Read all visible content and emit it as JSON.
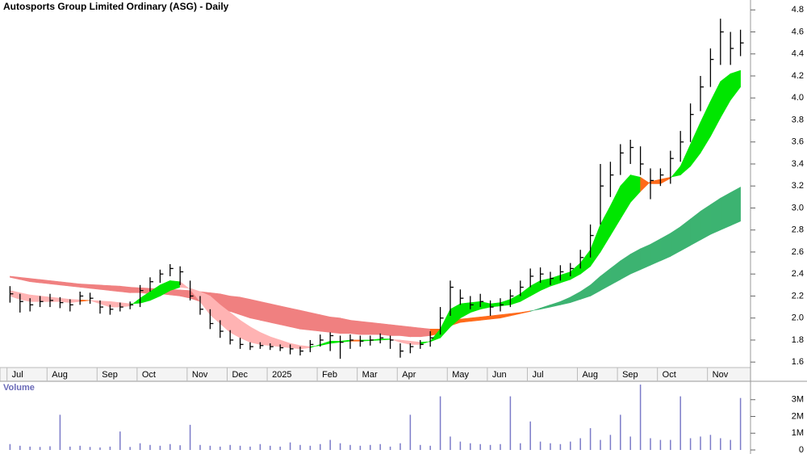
{
  "chart_data": {
    "type": "ohlc",
    "title": "Autosports Group Limited Ordinary (ASG) - Daily",
    "xlim": [
      -1,
      74
    ],
    "xticks": [
      {
        "value": -0.3,
        "label": "Jul"
      },
      {
        "value": 3.7,
        "label": "Aug"
      },
      {
        "value": 8.7,
        "label": "Sep"
      },
      {
        "value": 12.7,
        "label": "Oct"
      },
      {
        "value": 17.7,
        "label": "Nov"
      },
      {
        "value": 21.7,
        "label": "Dec"
      },
      {
        "value": 25.7,
        "label": "2025"
      },
      {
        "value": 30.7,
        "label": "Feb"
      },
      {
        "value": 34.7,
        "label": "Mar"
      },
      {
        "value": 38.7,
        "label": "Apr"
      },
      {
        "value": 43.7,
        "label": "May"
      },
      {
        "value": 47.7,
        "label": "Jun"
      },
      {
        "value": 51.7,
        "label": "Jul"
      },
      {
        "value": 56.7,
        "label": "Aug"
      },
      {
        "value": 60.7,
        "label": "Sep"
      },
      {
        "value": 64.7,
        "label": "Oct"
      },
      {
        "value": 69.7,
        "label": "Nov"
      }
    ],
    "ylim": [
      1.55,
      4.89
    ],
    "yticks": [
      1.6,
      1.8,
      {
        "value": 2,
        "label": "2.0"
      },
      2.2,
      2.4,
      2.6,
      2.8,
      {
        "value": 3,
        "label": "3.0"
      },
      3.2,
      3.4,
      3.6,
      3.8,
      {
        "value": 4,
        "label": "4.0"
      },
      4.2,
      4.4,
      4.6,
      4.8
    ],
    "color": "#000000",
    "values": [
      2.22,
      2.15,
      2.12,
      2.15,
      2.16,
      2.14,
      2.12,
      2.2,
      2.18,
      2.1,
      2.08,
      2.1,
      2.12,
      2.25,
      2.33,
      2.4,
      2.45,
      2.42,
      2.2,
      2.08,
      1.95,
      1.88,
      1.8,
      1.76,
      1.74,
      1.75,
      1.74,
      1.73,
      1.72,
      1.7,
      1.76,
      1.8,
      1.84,
      1.78,
      1.8,
      1.79,
      1.8,
      1.82,
      1.8,
      1.7,
      1.74,
      1.76,
      1.82,
      2.0,
      2.28,
      2.18,
      2.12,
      2.15,
      2.1,
      2.12,
      2.2,
      2.28,
      2.38,
      2.4,
      2.36,
      2.42,
      2.45,
      2.55,
      2.75,
      3.2,
      3.3,
      3.5,
      3.55,
      3.4,
      3.25,
      3.3,
      3.45,
      3.6,
      3.85,
      4.1,
      4.35,
      4.6,
      4.45,
      4.5
    ],
    "high": [
      2.29,
      2.22,
      2.18,
      2.2,
      2.22,
      2.19,
      2.17,
      2.24,
      2.23,
      2.16,
      2.12,
      2.14,
      2.15,
      2.3,
      2.37,
      2.44,
      2.49,
      2.47,
      2.34,
      2.2,
      2.08,
      1.98,
      1.89,
      1.82,
      1.78,
      1.78,
      1.77,
      1.76,
      1.76,
      1.74,
      1.8,
      1.85,
      1.87,
      1.84,
      1.85,
      1.84,
      1.84,
      1.86,
      1.84,
      1.77,
      1.77,
      1.8,
      1.88,
      2.1,
      2.34,
      2.26,
      2.2,
      2.22,
      2.16,
      2.18,
      2.26,
      2.34,
      2.45,
      2.46,
      2.42,
      2.48,
      2.5,
      2.62,
      2.85,
      3.4,
      3.42,
      3.58,
      3.62,
      3.56,
      3.36,
      3.36,
      3.52,
      3.7,
      3.95,
      4.2,
      4.45,
      4.72,
      4.6,
      4.62
    ],
    "low": [
      2.14,
      2.05,
      2.06,
      2.1,
      2.1,
      2.09,
      2.06,
      2.12,
      2.13,
      2.04,
      2.03,
      2.06,
      2.08,
      2.1,
      2.24,
      2.32,
      2.38,
      2.3,
      2.16,
      2.03,
      1.9,
      1.82,
      1.76,
      1.72,
      1.71,
      1.72,
      1.71,
      1.7,
      1.67,
      1.66,
      1.69,
      1.74,
      1.7,
      1.63,
      1.72,
      1.74,
      1.75,
      1.77,
      1.72,
      1.64,
      1.68,
      1.72,
      1.74,
      1.85,
      2.02,
      2.12,
      2.08,
      2.1,
      2.02,
      2.06,
      2.1,
      2.2,
      2.28,
      2.32,
      2.3,
      2.34,
      2.38,
      2.45,
      2.55,
      2.85,
      3.1,
      3.3,
      3.4,
      3.3,
      3.08,
      3.2,
      3.22,
      3.42,
      3.6,
      3.88,
      4.1,
      4.3,
      4.3,
      4.38
    ],
    "bands": [
      {
        "fast": [
          2.37,
          2.35,
          2.33,
          2.32,
          2.31,
          2.3,
          2.29,
          2.28,
          2.27,
          2.26,
          2.25,
          2.24,
          2.23,
          2.23,
          2.22,
          2.22,
          2.21,
          2.2,
          2.18,
          2.15,
          2.12,
          2.09,
          2.06,
          2.03,
          2.0,
          1.98,
          1.96,
          1.94,
          1.92,
          1.9,
          1.89,
          1.88,
          1.87,
          1.86,
          1.86,
          1.85,
          1.85,
          1.85,
          1.84,
          1.84,
          1.83,
          1.83,
          1.84,
          1.86,
          1.93,
          1.96,
          1.97,
          1.98,
          1.99,
          2.0,
          2.02,
          2.04,
          2.06,
          2.09,
          2.12,
          2.15,
          2.19,
          2.24,
          2.3,
          2.38,
          2.45,
          2.52,
          2.58,
          2.63,
          2.67,
          2.72,
          2.77,
          2.83,
          2.9,
          2.97,
          3.03,
          3.09,
          3.14,
          3.19
        ],
        "slow": [
          2.38,
          2.37,
          2.36,
          2.35,
          2.34,
          2.33,
          2.32,
          2.31,
          2.305,
          2.3,
          2.295,
          2.29,
          2.28,
          2.275,
          2.27,
          2.265,
          2.26,
          2.255,
          2.25,
          2.24,
          2.23,
          2.22,
          2.2,
          2.19,
          2.17,
          2.15,
          2.13,
          2.11,
          2.09,
          2.07,
          2.05,
          2.03,
          2.01,
          2.0,
          1.98,
          1.97,
          1.96,
          1.95,
          1.94,
          1.93,
          1.92,
          1.91,
          1.9,
          1.9,
          1.97,
          1.99,
          2.0,
          2.01,
          2.02,
          2.03,
          2.04,
          2.05,
          2.065,
          2.08,
          2.1,
          2.12,
          2.14,
          2.17,
          2.2,
          2.25,
          2.3,
          2.35,
          2.4,
          2.44,
          2.48,
          2.52,
          2.56,
          2.61,
          2.66,
          2.71,
          2.76,
          2.8,
          2.84,
          2.88
        ],
        "rise_color": "#3cb371",
        "fall_color": "#f08080",
        "mixed_color": "#ff6a1a"
      },
      {
        "fast": [
          2.2,
          2.17,
          2.15,
          2.15,
          2.15,
          2.15,
          2.14,
          2.15,
          2.16,
          2.13,
          2.1,
          2.1,
          2.11,
          2.18,
          2.24,
          2.3,
          2.34,
          2.33,
          2.26,
          2.15,
          2.03,
          1.95,
          1.87,
          1.82,
          1.78,
          1.76,
          1.75,
          1.74,
          1.73,
          1.72,
          1.73,
          1.76,
          1.79,
          1.79,
          1.8,
          1.8,
          1.8,
          1.81,
          1.81,
          1.78,
          1.76,
          1.76,
          1.79,
          1.9,
          2.08,
          2.13,
          2.14,
          2.15,
          2.13,
          2.14,
          2.17,
          2.22,
          2.29,
          2.34,
          2.36,
          2.39,
          2.42,
          2.5,
          2.62,
          2.85,
          3.02,
          3.2,
          3.3,
          3.28,
          3.22,
          3.22,
          3.27,
          3.38,
          3.58,
          3.78,
          3.97,
          4.15,
          4.22,
          4.25
        ],
        "slow": [
          2.25,
          2.23,
          2.21,
          2.2,
          2.19,
          2.18,
          2.17,
          2.165,
          2.16,
          2.155,
          2.15,
          2.14,
          2.13,
          2.135,
          2.16,
          2.2,
          2.25,
          2.28,
          2.27,
          2.24,
          2.2,
          2.12,
          2.05,
          1.98,
          1.92,
          1.87,
          1.83,
          1.8,
          1.77,
          1.75,
          1.74,
          1.75,
          1.77,
          1.78,
          1.79,
          1.79,
          1.795,
          1.8,
          1.805,
          1.8,
          1.79,
          1.78,
          1.785,
          1.82,
          1.92,
          2.0,
          2.05,
          2.08,
          2.1,
          2.11,
          2.12,
          2.15,
          2.2,
          2.25,
          2.29,
          2.32,
          2.35,
          2.4,
          2.47,
          2.6,
          2.75,
          2.9,
          3.05,
          3.15,
          3.24,
          3.26,
          3.28,
          3.3,
          3.38,
          3.5,
          3.65,
          3.82,
          3.98,
          4.1
        ],
        "rise_color": "#00e600",
        "fall_color": "#ffb3b3",
        "mixed_color": "#ff6a1a"
      }
    ],
    "volume": {
      "label": "Volume",
      "color": "#7b7bc8",
      "ylim": [
        0,
        4000000
      ],
      "yticks": [
        0,
        {
          "value": 1000000,
          "label": "1M"
        },
        {
          "value": 2000000,
          "label": "2M"
        },
        {
          "value": 3000000,
          "label": "3M"
        }
      ],
      "values": [
        350000,
        250000,
        200000,
        180000,
        220000,
        2100000,
        200000,
        250000,
        180000,
        150000,
        200000,
        1100000,
        180000,
        400000,
        300000,
        250000,
        350000,
        280000,
        1500000,
        300000,
        250000,
        200000,
        300000,
        250000,
        200000,
        350000,
        250000,
        200000,
        450000,
        300000,
        250000,
        350000,
        600000,
        400000,
        300000,
        250000,
        300000,
        350000,
        200000,
        400000,
        2100000,
        300000,
        250000,
        3200000,
        800000,
        500000,
        400000,
        350000,
        300000,
        350000,
        3200000,
        400000,
        1700000,
        500000,
        400000,
        350000,
        500000,
        700000,
        1300000,
        600000,
        900000,
        2100000,
        800000,
        3900000,
        700000,
        600000,
        600000,
        3200000,
        700000,
        800000,
        900000,
        700000,
        600000,
        3100000
      ]
    }
  }
}
